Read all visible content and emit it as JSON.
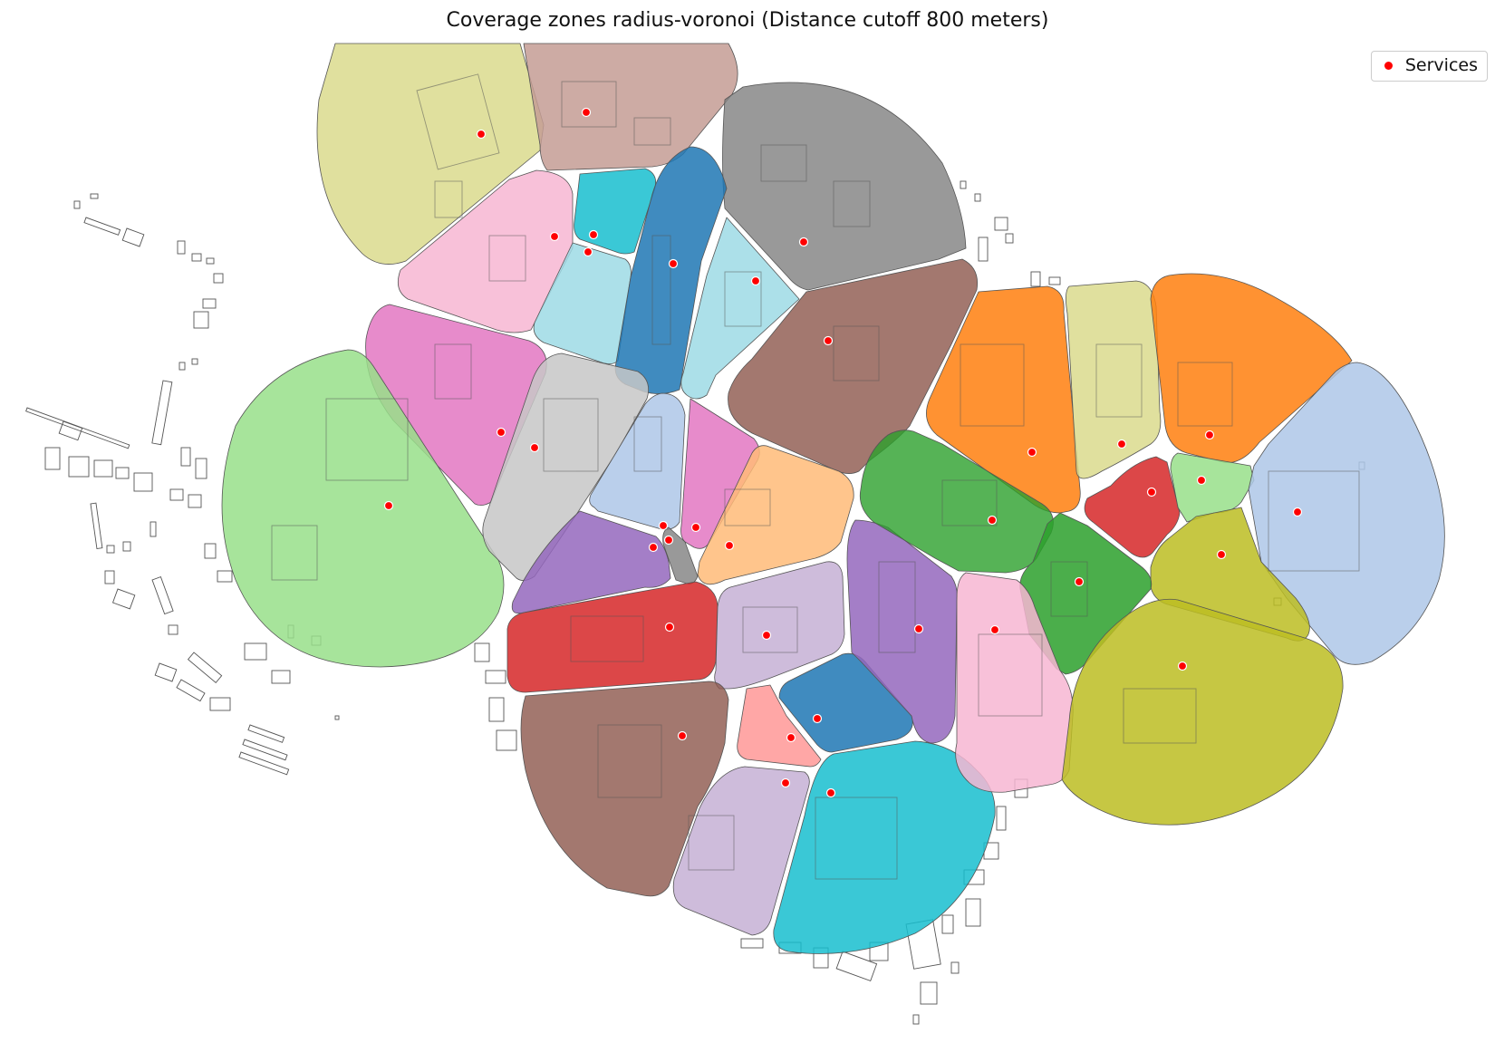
{
  "title": "Coverage zones radius-voronoi (Distance cutoff 800 meters)",
  "legend": {
    "label": "Services",
    "marker_color": "#ff0000"
  },
  "colors": {
    "khaki": "#dbdb8d",
    "rosy": "#c49c94",
    "gray": "#7f7f7f",
    "cyan": "#17becf",
    "lightcyan": "#9edae5",
    "blue": "#1f77b4",
    "pink": "#f7b6d2",
    "magenta": "#e377c2",
    "lightgreen": "#98df8a",
    "silver": "#c7c7c7",
    "lightblue": "#aec7e8",
    "brown": "#8c564b",
    "orange": "#ff7f0e",
    "peach": "#ffbb78",
    "purple": "#9467bd",
    "lavender": "#c5b0d5",
    "red": "#d62728",
    "green": "#2ca02c",
    "olive": "#bcbd22",
    "salmon": "#ff9896",
    "building_outline": "#555555"
  }
}
